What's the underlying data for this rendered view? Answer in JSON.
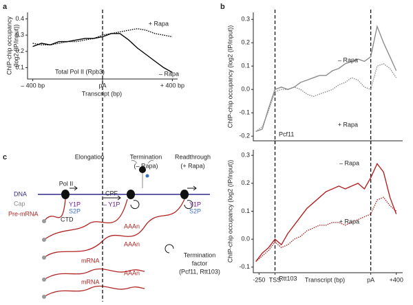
{
  "panel_labels": [
    "a",
    "b",
    "c"
  ],
  "chart_data": [
    {
      "type": "line",
      "ylabel": [
        "ChIP-chip occupancy",
        "(log2 (IP/input))"
      ],
      "xlabel": "Transcript (bp)",
      "x": [
        -400,
        -350,
        -300,
        -250,
        -200,
        -150,
        -100,
        -50,
        0,
        50,
        100,
        150,
        200,
        250,
        300,
        350,
        400
      ],
      "series": [
        {
          "name": "– Rapa",
          "color": "#000000",
          "style": "solid",
          "values": [
            0.23,
            0.25,
            0.24,
            0.26,
            0.26,
            0.27,
            0.28,
            0.28,
            0.29,
            0.31,
            0.31,
            0.27,
            0.22,
            0.18,
            0.14,
            0.1,
            0.07
          ]
        },
        {
          "name": "+ Rapa",
          "color": "#000000",
          "style": "dotted",
          "values": [
            0.25,
            0.24,
            0.24,
            0.25,
            0.26,
            0.26,
            0.27,
            0.28,
            0.3,
            0.31,
            0.32,
            0.33,
            0.34,
            0.33,
            0.31,
            0.3,
            0.29
          ]
        }
      ],
      "annotations": [
        "Total Pol II (Rpb3)"
      ],
      "xlim": [
        -430,
        430
      ],
      "ylim": [
        0.03,
        0.44
      ],
      "xticks": [
        {
          "value": -400,
          "label": "– 400 bp"
        },
        {
          "value": 0,
          "label": "pA"
        },
        {
          "value": 400,
          "label": "+ 400 bp"
        }
      ],
      "yticks": [
        0.1,
        0.2,
        0.3,
        0.4
      ],
      "vlines": [
        0
      ]
    },
    {
      "type": "line",
      "ylabel": "ChIP-chip occupancy (log2 (IP/input))",
      "x": [
        -300,
        -200,
        -100,
        0,
        100,
        200,
        300,
        400,
        500,
        600,
        700,
        800,
        900,
        1000,
        1100,
        1200,
        1300,
        1400,
        1500,
        1600,
        1700,
        1800,
        1900
      ],
      "series": [
        {
          "name": "– Rapa",
          "color": "#8c8c8c",
          "style": "solid",
          "values": [
            -0.18,
            -0.17,
            -0.08,
            0.0,
            0.01,
            0.0,
            0.01,
            0.03,
            0.04,
            0.05,
            0.06,
            0.06,
            0.08,
            0.09,
            0.11,
            0.12,
            0.13,
            0.12,
            0.14,
            0.27,
            0.2,
            0.14,
            0.08
          ]
        },
        {
          "name": "+ Rapa",
          "color": "#8c8c8c",
          "style": "dotted",
          "values": [
            -0.18,
            -0.16,
            -0.09,
            -0.01,
            0.0,
            0.0,
            0.01,
            0.0,
            -0.02,
            -0.03,
            -0.02,
            -0.01,
            0.0,
            0.02,
            0.03,
            0.05,
            0.04,
            0.01,
            0.0,
            0.1,
            0.11,
            0.09,
            0.05
          ]
        }
      ],
      "annotations": [
        "Pcf11"
      ],
      "xlim": [
        -340,
        2000
      ],
      "ylim": [
        -0.22,
        0.33
      ],
      "yticks": [
        -0.2,
        -0.1,
        {
          "value": 0,
          "label": "0.0"
        },
        0.1,
        0.2,
        0.3
      ],
      "vlines": [
        0,
        1500
      ]
    },
    {
      "type": "line",
      "ylabel": "ChIP-chip occupancy (log2 (IP/input))",
      "xlabel": "Transcript (bp)",
      "x": [
        -300,
        -200,
        -100,
        0,
        100,
        200,
        300,
        400,
        500,
        600,
        700,
        800,
        900,
        1000,
        1100,
        1200,
        1300,
        1400,
        1500,
        1600,
        1700,
        1800,
        1900
      ],
      "series": [
        {
          "name": "– Rapa",
          "color": "#b22222",
          "style": "solid",
          "values": [
            -0.08,
            -0.05,
            -0.03,
            0.0,
            -0.02,
            0.02,
            0.05,
            0.08,
            0.11,
            0.13,
            0.15,
            0.17,
            0.18,
            0.19,
            0.18,
            0.19,
            0.2,
            0.18,
            0.22,
            0.27,
            0.24,
            0.15,
            0.09
          ]
        },
        {
          "name": "+ Rapa",
          "color": "#b22222",
          "style": "dotted",
          "values": [
            -0.08,
            -0.06,
            -0.04,
            -0.01,
            -0.03,
            -0.02,
            0.0,
            0.01,
            0.03,
            0.04,
            0.05,
            0.05,
            0.06,
            0.06,
            0.05,
            0.06,
            0.07,
            0.08,
            0.09,
            0.14,
            0.15,
            0.12,
            0.1
          ]
        }
      ],
      "annotations": [
        "Rtt103"
      ],
      "xlim": [
        -340,
        2000
      ],
      "ylim": [
        -0.12,
        0.32
      ],
      "xticks": [
        -250,
        {
          "value": 0,
          "label": "TSS"
        },
        {
          "value": 1500,
          "label": "pA"
        },
        {
          "value": 1900,
          "label": "+400"
        }
      ],
      "yticks": [
        -0.1,
        {
          "value": 0,
          "label": "0.0"
        },
        0.1,
        0.2,
        0.3
      ],
      "vlines": [
        0,
        1500
      ]
    }
  ],
  "diagram": {
    "stages": [
      "Elongation",
      "Termination",
      "(– Rapa)",
      "Readthrough",
      "(+ Rapa)"
    ],
    "labels": {
      "dna": "DNA",
      "cap": "Cap",
      "pre_mrna": "Pre-mRNA",
      "pol2": "Pol II",
      "y1p": "Y1P",
      "s2p": "S2P",
      "ctd": "CTD",
      "cpf": "CPF",
      "minus_y1p": "– Y1P",
      "y1p_b": "Y1P",
      "s2p_b": "S2P",
      "aaan": [
        "AAAn",
        "AAAn",
        "AAAn"
      ],
      "mrna": [
        "mRNA",
        "mRNA"
      ],
      "factor": [
        "Termination",
        "factor",
        "(Pcf11, Rtt103)"
      ]
    }
  }
}
